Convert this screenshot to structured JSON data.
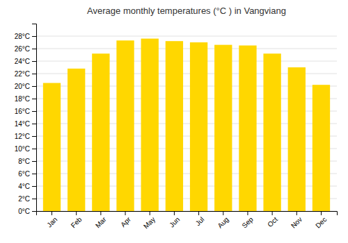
{
  "chart_data": {
    "type": "bar",
    "title": "Average monthly temperatures (°C ) in Vangviang",
    "categories": [
      "Jan",
      "Feb",
      "Mar",
      "Apr",
      "May",
      "Jun",
      "Jul",
      "Aug",
      "Sep",
      "Oct",
      "Nov",
      "Dec"
    ],
    "values": [
      20.5,
      22.8,
      25.2,
      27.3,
      27.6,
      27.2,
      27.0,
      26.6,
      26.5,
      25.2,
      23.0,
      20.2
    ],
    "color": "#FFD700",
    "ylim": [
      0,
      30
    ],
    "yticks": [
      {
        "value": 0,
        "label": "0°C"
      },
      {
        "value": 2,
        "label": "2°C"
      },
      {
        "value": 4,
        "label": "4°C"
      },
      {
        "value": 6,
        "label": "6°C"
      },
      {
        "value": 8,
        "label": "8°C"
      },
      {
        "value": 10,
        "label": "10°C"
      },
      {
        "value": 12,
        "label": "12°C"
      },
      {
        "value": 14,
        "label": "14°C"
      },
      {
        "value": 16,
        "label": "16°C"
      },
      {
        "value": 18,
        "label": "18°C"
      },
      {
        "value": 20,
        "label": "20°C"
      },
      {
        "value": 22,
        "label": "22°C"
      },
      {
        "value": 24,
        "label": "24°C"
      },
      {
        "value": 26,
        "label": "26°C"
      },
      {
        "value": 28,
        "label": "28°C"
      }
    ],
    "grid": true
  }
}
